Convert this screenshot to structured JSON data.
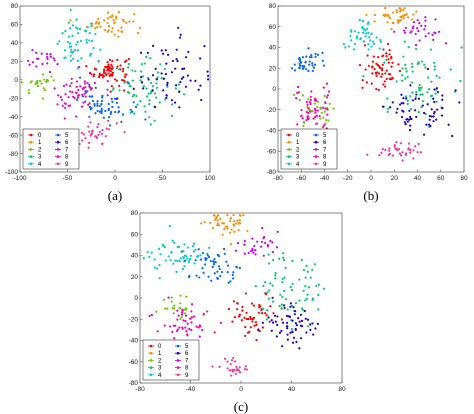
{
  "palette": [
    "#ff0000",
    "#ff8c00",
    "#66cc00",
    "#00cc66",
    "#00cccc",
    "#0066ff",
    "#2200cc",
    "#cc00ff",
    "#ff00aa",
    "#ff3399"
  ],
  "chart_data": [
    {
      "type": "scatter",
      "caption": "(a)",
      "xlim": [
        -100,
        100
      ],
      "ylim": [
        -100,
        80
      ],
      "xticks": [
        -100,
        -50,
        0,
        50,
        100
      ],
      "yticks": [
        -100,
        -80,
        -60,
        -40,
        -20,
        0,
        20,
        40,
        60,
        80
      ],
      "grid": false,
      "legend": {
        "placement": "bottom-left",
        "labels": [
          "0",
          "1",
          "2",
          "3",
          "4",
          "5",
          "6",
          "7",
          "8",
          "9"
        ]
      },
      "clusters": [
        {
          "label": "0",
          "cx": -5,
          "cy": 10,
          "sx": 10,
          "sy": 8,
          "n": 70
        },
        {
          "label": "1",
          "cx": -5,
          "cy": 62,
          "sx": 12,
          "sy": 7,
          "n": 45
        },
        {
          "label": "2",
          "cx": -80,
          "cy": -5,
          "sx": 9,
          "sy": 5,
          "n": 25
        },
        {
          "label": "3",
          "cx": 35,
          "cy": -10,
          "sx": 18,
          "sy": 15,
          "n": 70
        },
        {
          "label": "4",
          "cx": -40,
          "cy": 40,
          "sx": 12,
          "sy": 12,
          "n": 55
        },
        {
          "label": "5",
          "cx": -10,
          "cy": -25,
          "sx": 14,
          "sy": 10,
          "n": 65
        },
        {
          "label": "6",
          "cx": 60,
          "cy": 5,
          "sx": 20,
          "sy": 20,
          "n": 60
        },
        {
          "label": "7",
          "cx": -75,
          "cy": 20,
          "sx": 10,
          "sy": 6,
          "n": 20
        },
        {
          "label": "8",
          "cx": -40,
          "cy": -15,
          "sx": 12,
          "sy": 12,
          "n": 55
        },
        {
          "label": "9",
          "cx": -25,
          "cy": -58,
          "sx": 14,
          "sy": 8,
          "n": 40
        }
      ]
    },
    {
      "type": "scatter",
      "caption": "(b)",
      "xlim": [
        -80,
        80
      ],
      "ylim": [
        -80,
        80
      ],
      "xticks": [
        -80,
        -60,
        -40,
        -20,
        0,
        20,
        40,
        60,
        80
      ],
      "yticks": [
        -80,
        -60,
        -40,
        -20,
        0,
        20,
        40,
        60,
        80
      ],
      "grid": false,
      "legend": {
        "placement": "bottom-left",
        "labels": [
          "0",
          "1",
          "2",
          "3",
          "4",
          "5",
          "6",
          "7",
          "8",
          "9"
        ]
      },
      "clusters": [
        {
          "label": "0",
          "cx": 10,
          "cy": 20,
          "sx": 8,
          "sy": 10,
          "n": 60
        },
        {
          "label": "1",
          "cx": 20,
          "cy": 70,
          "sx": 10,
          "sy": 5,
          "n": 45
        },
        {
          "label": "2",
          "cx": -45,
          "cy": -20,
          "sx": 8,
          "sy": 8,
          "n": 35
        },
        {
          "label": "3",
          "cx": 40,
          "cy": 10,
          "sx": 15,
          "sy": 18,
          "n": 70
        },
        {
          "label": "4",
          "cx": -10,
          "cy": 50,
          "sx": 10,
          "sy": 8,
          "n": 45
        },
        {
          "label": "5",
          "cx": -55,
          "cy": 25,
          "sx": 7,
          "sy": 6,
          "n": 40
        },
        {
          "label": "6",
          "cx": 40,
          "cy": -20,
          "sx": 15,
          "sy": 12,
          "n": 65
        },
        {
          "label": "7",
          "cx": 45,
          "cy": 55,
          "sx": 10,
          "sy": 7,
          "n": 30
        },
        {
          "label": "8",
          "cx": -50,
          "cy": -20,
          "sx": 9,
          "sy": 10,
          "n": 55
        },
        {
          "label": "9",
          "cx": 25,
          "cy": -60,
          "sx": 10,
          "sy": 5,
          "n": 35
        }
      ]
    },
    {
      "type": "scatter",
      "caption": "(c)",
      "xlim": [
        -80,
        80
      ],
      "ylim": [
        -80,
        80
      ],
      "xticks": [
        -80,
        -40,
        0,
        40,
        80
      ],
      "yticks": [
        -80,
        -60,
        -40,
        -20,
        0,
        20,
        40,
        60,
        80
      ],
      "grid": false,
      "legend": {
        "placement": "bottom-left",
        "labels": [
          "0",
          "1",
          "2",
          "3",
          "4",
          "5",
          "6",
          "7",
          "8",
          "9"
        ]
      },
      "clusters": [
        {
          "label": "0",
          "cx": 10,
          "cy": -15,
          "sx": 10,
          "sy": 10,
          "n": 55
        },
        {
          "label": "1",
          "cx": -10,
          "cy": 70,
          "sx": 8,
          "sy": 6,
          "n": 45
        },
        {
          "label": "2",
          "cx": -50,
          "cy": -10,
          "sx": 8,
          "sy": 6,
          "n": 25
        },
        {
          "label": "3",
          "cx": 40,
          "cy": 10,
          "sx": 15,
          "sy": 18,
          "n": 70
        },
        {
          "label": "4",
          "cx": -50,
          "cy": 40,
          "sx": 12,
          "sy": 8,
          "n": 55
        },
        {
          "label": "5",
          "cx": -20,
          "cy": 30,
          "sx": 10,
          "sy": 10,
          "n": 50
        },
        {
          "label": "6",
          "cx": 40,
          "cy": -25,
          "sx": 12,
          "sy": 10,
          "n": 60
        },
        {
          "label": "7",
          "cx": 15,
          "cy": 50,
          "sx": 8,
          "sy": 5,
          "n": 30
        },
        {
          "label": "8",
          "cx": -45,
          "cy": -25,
          "sx": 10,
          "sy": 12,
          "n": 55
        },
        {
          "label": "9",
          "cx": -5,
          "cy": -65,
          "sx": 6,
          "sy": 4,
          "n": 25
        }
      ]
    }
  ]
}
